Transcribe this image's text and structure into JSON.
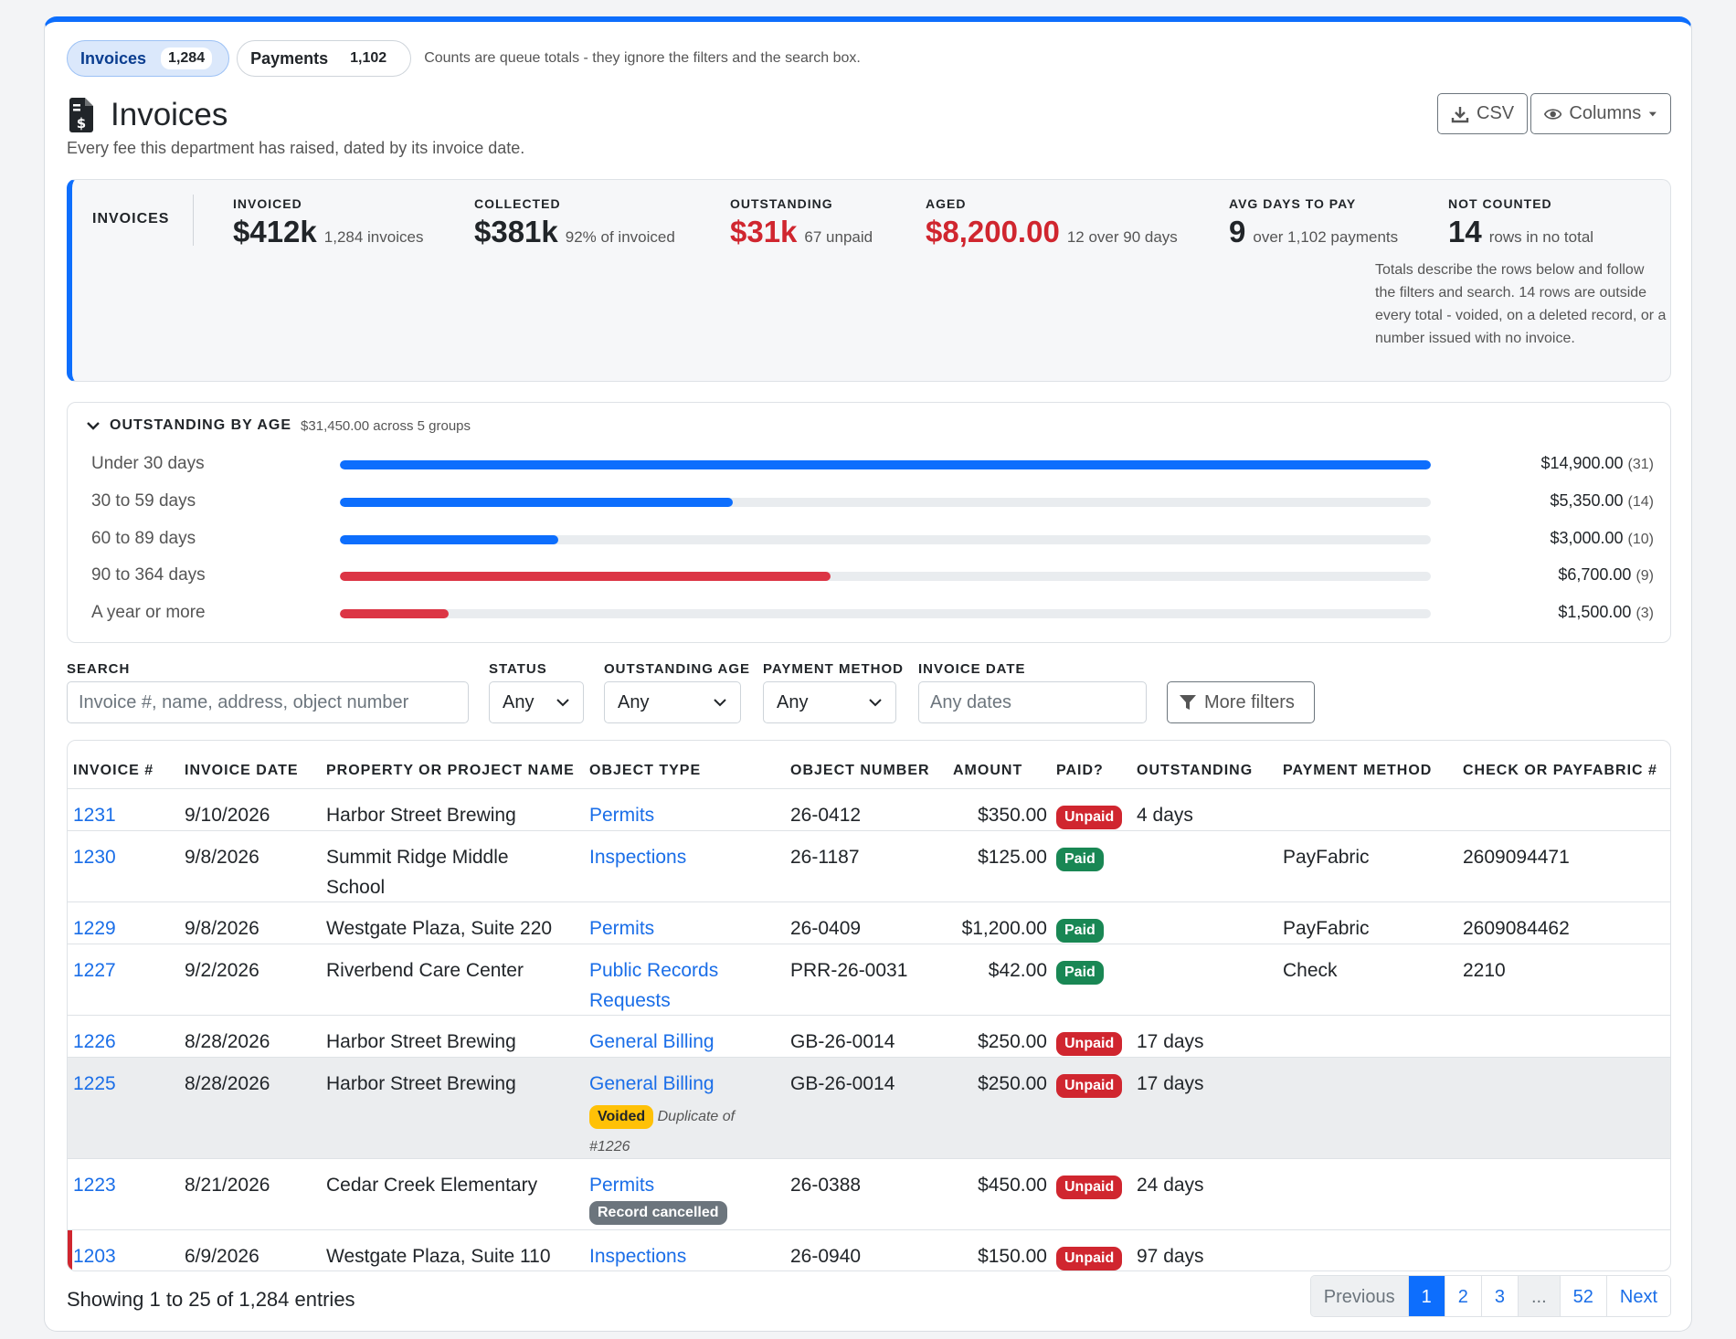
{
  "queue_tabs": [
    {
      "label": "Invoices",
      "count": "1,284",
      "active": true
    },
    {
      "label": "Payments",
      "count": "1,102",
      "active": false
    }
  ],
  "queue_note": "Counts are queue totals - they ignore the filters and the search box.",
  "page": {
    "title": "Invoices",
    "subtitle": "Every fee this department has raised, dated by its invoice date.",
    "csv_label": "CSV",
    "columns_label": "Columns"
  },
  "summary": {
    "label": "INVOICES",
    "invoiced": {
      "key": "INVOICED",
      "value": "$412k",
      "note": "1,284 invoices"
    },
    "collected": {
      "key": "COLLECTED",
      "value": "$381k",
      "note": "92% of invoiced"
    },
    "outstanding": {
      "key": "OUTSTANDING",
      "value": "$31k",
      "note": "67 unpaid"
    },
    "aged": {
      "key": "AGED",
      "value": "$8,200.00",
      "note": "12 over 90 days"
    },
    "avg_days": {
      "key": "AVG DAYS TO PAY",
      "value": "9",
      "note": "over 1,102 payments"
    },
    "not_counted": {
      "key": "NOT COUNTED",
      "value": "14",
      "note": "rows in no total"
    },
    "footnote": "Totals describe the rows below and follow the filters and search. 14 rows are outside every total - voided, on a deleted record, or a number issued with no invoice."
  },
  "aging": {
    "title": "OUTSTANDING BY AGE",
    "total": "$31,450.00 across 5 groups",
    "rows": [
      {
        "label": "Under 30 days",
        "amount": "$14,900.00",
        "count": "(31)",
        "fraction": 1.0,
        "color": "#0d6efd"
      },
      {
        "label": "30 to 59 days",
        "amount": "$5,350.00",
        "count": "(14)",
        "fraction": 0.36,
        "color": "#0d6efd"
      },
      {
        "label": "60 to 89 days",
        "amount": "$3,000.00",
        "count": "(10)",
        "fraction": 0.2,
        "color": "#0d6efd"
      },
      {
        "label": "90 to 364 days",
        "amount": "$6,700.00",
        "count": "(9)",
        "fraction": 0.45,
        "color": "#dc3545"
      },
      {
        "label": "A year or more",
        "amount": "$1,500.00",
        "count": "(3)",
        "fraction": 0.1,
        "color": "#dc3545"
      }
    ]
  },
  "filters": {
    "search_label": "SEARCH",
    "search_placeholder": "Invoice #, name, address, object number",
    "status_label": "STATUS",
    "status_value": "Any",
    "age_label": "OUTSTANDING AGE",
    "age_value": "Any",
    "method_label": "PAYMENT METHOD",
    "method_value": "Any",
    "date_label": "INVOICE DATE",
    "date_placeholder": "Any dates",
    "more_label": "More filters"
  },
  "table": {
    "headers": [
      "INVOICE #",
      "INVOICE DATE",
      "PROPERTY OR PROJECT NAME",
      "OBJECT TYPE",
      "OBJECT NUMBER",
      "AMOUNT",
      "PAID?",
      "OUTSTANDING",
      "PAYMENT METHOD",
      "CHECK OR PAYFABRIC #"
    ],
    "rows": [
      {
        "invoice": "1231",
        "date": "9/10/2026",
        "name": "Harbor Street Brewing",
        "type": "Permits",
        "number": "26-0412",
        "amount": "$350.00",
        "paid": "Unpaid",
        "outstanding": "4 days",
        "method": "",
        "check": ""
      },
      {
        "invoice": "1230",
        "date": "9/8/2026",
        "name": "Summit Ridge Middle School",
        "type": "Inspections",
        "number": "26-1187",
        "amount": "$125.00",
        "paid": "Paid",
        "outstanding": "",
        "method": "PayFabric",
        "check": "2609094471"
      },
      {
        "invoice": "1229",
        "date": "9/8/2026",
        "name": "Westgate Plaza, Suite 220",
        "type": "Permits",
        "number": "26-0409",
        "amount": "$1,200.00",
        "paid": "Paid",
        "outstanding": "",
        "method": "PayFabric",
        "check": "2609084462"
      },
      {
        "invoice": "1227",
        "date": "9/2/2026",
        "name": "Riverbend Care Center",
        "type": "Public Records Requests",
        "number": "PRR-26-0031",
        "amount": "$42.00",
        "paid": "Paid",
        "outstanding": "",
        "method": "Check",
        "check": "2210"
      },
      {
        "invoice": "1226",
        "date": "8/28/2026",
        "name": "Harbor Street Brewing",
        "type": "General Billing",
        "number": "GB-26-0014",
        "amount": "$250.00",
        "paid": "Unpaid",
        "outstanding": "17 days",
        "method": "",
        "check": ""
      },
      {
        "invoice": "1225",
        "date": "8/28/2026",
        "name": "Harbor Street Brewing",
        "type": "General Billing",
        "number": "GB-26-0014",
        "amount": "$250.00",
        "paid": "Unpaid",
        "outstanding": "17 days",
        "method": "",
        "check": "",
        "voided": "Voided",
        "voided_note": "Duplicate of #1226"
      },
      {
        "invoice": "1223",
        "date": "8/21/2026",
        "name": "Cedar Creek Elementary",
        "type": "Permits",
        "number": "26-0388",
        "amount": "$450.00",
        "paid": "Unpaid",
        "outstanding": "24 days",
        "method": "",
        "check": "",
        "cancelled": "Record cancelled"
      },
      {
        "invoice": "1203",
        "date": "6/9/2026",
        "name": "Westgate Plaza, Suite 110",
        "type": "Inspections",
        "number": "26-0940",
        "amount": "$150.00",
        "paid": "Unpaid",
        "outstanding": "97 days",
        "method": "",
        "check": ""
      }
    ]
  },
  "footer": {
    "showing": "Showing 1 to 25 of 1,284 entries",
    "pages": [
      "Previous",
      "1",
      "2",
      "3",
      "...",
      "52",
      "Next"
    ]
  }
}
